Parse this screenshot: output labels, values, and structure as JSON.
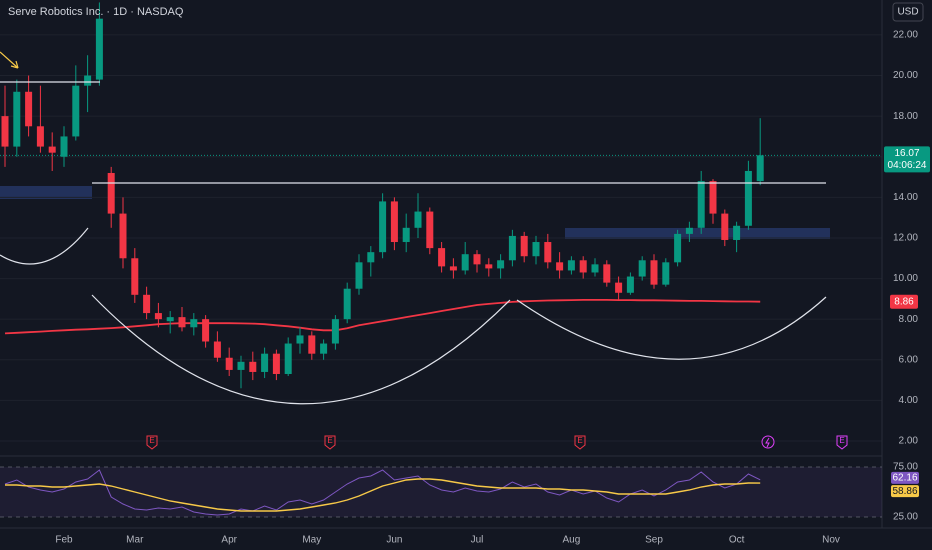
{
  "chart_data": [
    {
      "type": "candlestick",
      "title": "Serve Robotics Inc. · 1D · NASDAQ",
      "currency": "USD",
      "countdown": "04:06:24",
      "categories": [
        null,
        null,
        null,
        null,
        null,
        "Feb",
        null,
        null,
        null,
        null,
        null,
        "Mar",
        null,
        null,
        null,
        null,
        null,
        null,
        null,
        "Apr",
        null,
        null,
        null,
        null,
        null,
        null,
        "May",
        null,
        null,
        null,
        null,
        null,
        null,
        "Jun",
        null,
        null,
        null,
        null,
        null,
        null,
        "Jul",
        null,
        null,
        null,
        null,
        null,
        null,
        null,
        "Aug",
        null,
        null,
        null,
        null,
        null,
        null,
        "Sep",
        null,
        null,
        null,
        null,
        null,
        null,
        "Oct",
        null,
        null,
        null,
        null,
        null,
        null,
        null,
        "Nov"
      ],
      "open": [
        18,
        16.5,
        19.2,
        17.5,
        16.5,
        16,
        17,
        19.5,
        19.8,
        15.2,
        13.2,
        11,
        9.2,
        8.3,
        7.9,
        8.1,
        7.6,
        8,
        6.9,
        6.1,
        5.5,
        5.9,
        5.4,
        6.3,
        5.3,
        6.8,
        7.2,
        6.3,
        6.8,
        8,
        9.5,
        10.8,
        11.3,
        13.8,
        11.8,
        12.5,
        13.3,
        11.5,
        10.6,
        10.4,
        11.2,
        10.7,
        10.5,
        10.9,
        12.1,
        11.1,
        11.8,
        10.8,
        10.4,
        10.9,
        10.3,
        10.7,
        9.8,
        9.3,
        10.1,
        10.9,
        9.7,
        10.8,
        12.2,
        12.5,
        14.8,
        13.2,
        11.9,
        12.6,
        14.8,
        null,
        null,
        null,
        null,
        null,
        null
      ],
      "high": [
        19.5,
        19.8,
        20,
        19.5,
        17.2,
        17.5,
        20.5,
        21,
        23.6,
        15.5,
        14,
        11.5,
        9.6,
        8.8,
        8.4,
        8.6,
        8.3,
        8.2,
        7.4,
        6.6,
        6.2,
        6.4,
        6.6,
        6.5,
        7.1,
        7.6,
        7.4,
        7,
        8.2,
        9.8,
        11.2,
        11.6,
        14.2,
        14,
        13.2,
        14.2,
        13.5,
        11.8,
        11,
        11.8,
        11.4,
        11,
        11.2,
        12.4,
        12.3,
        12.1,
        12.2,
        11.3,
        11.1,
        11.1,
        11,
        10.9,
        10.1,
        10.3,
        11.1,
        11.2,
        11,
        12.4,
        12.8,
        15.3,
        14.9,
        13.4,
        12.8,
        15.8,
        17.9,
        null,
        null,
        null,
        null,
        null,
        null
      ],
      "low": [
        15.5,
        16,
        17,
        16.2,
        15.3,
        15.5,
        16.8,
        18.2,
        19.5,
        12.5,
        10.5,
        8.8,
        8,
        7.6,
        7.3,
        7.4,
        7.2,
        6.6,
        5.9,
        5.2,
        4.6,
        5,
        5.1,
        5,
        5.2,
        6.3,
        6,
        6,
        6.5,
        7.8,
        9.2,
        10.1,
        11,
        11.4,
        11.3,
        12,
        11.2,
        10.3,
        10,
        10.2,
        10.3,
        10.1,
        10,
        10.6,
        10.8,
        10.7,
        10.5,
        10,
        10.2,
        10,
        10.1,
        9.6,
        8.9,
        9.2,
        9.9,
        9.5,
        9.6,
        10.6,
        11.8,
        12.2,
        12.7,
        11.6,
        11.3,
        12.4,
        14.6,
        null,
        null,
        null,
        null,
        null,
        null
      ],
      "close": [
        16.5,
        19.2,
        17.5,
        16.5,
        16.2,
        17,
        19.5,
        20,
        22.8,
        13.2,
        11,
        9.2,
        8.3,
        8,
        8.1,
        7.6,
        8,
        6.9,
        6.1,
        5.5,
        5.9,
        5.4,
        6.3,
        5.3,
        6.8,
        7.2,
        6.3,
        6.8,
        8,
        9.5,
        10.8,
        11.3,
        13.8,
        11.8,
        12.5,
        13.3,
        11.5,
        10.6,
        10.4,
        11.2,
        10.7,
        10.5,
        10.9,
        12.1,
        11.1,
        11.8,
        10.8,
        10.4,
        10.9,
        10.3,
        10.7,
        9.8,
        9.3,
        10.1,
        10.9,
        9.7,
        10.8,
        12.2,
        12.5,
        14.8,
        13.2,
        11.9,
        12.6,
        15.3,
        16.07,
        null,
        null,
        null,
        null,
        null,
        null
      ],
      "up_color": "#089981",
      "down_color": "#f23645",
      "overlay": {
        "color": "#f23645",
        "values": [
          7.3,
          7.33,
          7.36,
          7.39,
          7.42,
          7.45,
          7.48,
          7.5,
          7.53,
          7.56,
          7.6,
          7.65,
          7.7,
          7.75,
          7.78,
          7.8,
          7.8,
          7.8,
          7.8,
          7.8,
          7.79,
          7.78,
          7.75,
          7.7,
          7.65,
          7.58,
          7.5,
          7.45,
          7.45,
          7.55,
          7.7,
          7.8,
          7.9,
          8.0,
          8.1,
          8.2,
          8.3,
          8.4,
          8.5,
          8.6,
          8.7,
          8.75,
          8.8,
          8.85,
          8.88,
          8.9,
          8.92,
          8.93,
          8.94,
          8.95,
          8.95,
          8.95,
          8.94,
          8.94,
          8.93,
          8.93,
          8.92,
          8.91,
          8.9,
          8.9,
          8.89,
          8.88,
          8.87,
          8.87,
          8.86,
          null,
          null,
          null,
          null,
          null,
          null
        ]
      },
      "events": [
        "E",
        "E",
        "E",
        "E"
      ],
      "ylim": [
        1.31,
        23.72
      ],
      "yticks": [
        {
          "value": 2,
          "label": "2.00"
        },
        {
          "value": 4,
          "label": "4.00"
        },
        {
          "value": 6,
          "label": "6.00"
        },
        {
          "value": 8,
          "label": "8.00"
        },
        {
          "value": 10,
          "label": "10.00"
        },
        {
          "value": 12,
          "label": "12.00"
        },
        {
          "value": 14,
          "label": "14.00"
        },
        {
          "value": 16,
          "label": "16.00"
        },
        {
          "value": 18,
          "label": "18.00"
        },
        {
          "value": 20,
          "label": "20.00"
        },
        {
          "value": 22,
          "label": "22.00"
        }
      ]
    },
    {
      "type": "line",
      "series": [
        {
          "color": "#7e57c2",
          "values": [
            58,
            62,
            55,
            52,
            50,
            53,
            60,
            63,
            72,
            45,
            38,
            33,
            32,
            34,
            33,
            35,
            30,
            28,
            27,
            28,
            33,
            31,
            36,
            32,
            40,
            42,
            38,
            42,
            50,
            58,
            64,
            66,
            72,
            62,
            64,
            66,
            57,
            52,
            50,
            54,
            51,
            50,
            53,
            60,
            55,
            58,
            50,
            47,
            52,
            48,
            51,
            44,
            40,
            48,
            52,
            46,
            52,
            60,
            62,
            70,
            60,
            54,
            58,
            68,
            62.16,
            null,
            null,
            null,
            null,
            null,
            null
          ]
        },
        {
          "color": "#f7c948",
          "values": [
            57,
            57,
            56,
            56,
            55,
            55,
            56,
            57,
            58,
            56,
            53,
            50,
            47,
            44,
            41,
            39,
            37,
            35,
            33,
            32,
            31,
            31,
            31,
            31,
            32,
            33,
            35,
            37,
            39,
            42,
            46,
            51,
            56,
            59,
            62,
            63,
            63,
            62,
            60,
            58,
            56,
            55,
            54,
            54,
            54,
            54,
            53,
            53,
            52,
            52,
            51,
            50,
            48,
            48,
            48,
            48,
            48,
            50,
            52,
            55,
            57,
            58,
            58,
            59,
            58.86,
            null,
            null,
            null,
            null,
            null,
            null
          ]
        }
      ],
      "ylim": [
        17,
        84
      ],
      "yticks": [
        {
          "value": 75,
          "label": "75.00"
        },
        {
          "value": 25,
          "label": "25.00"
        }
      ]
    }
  ]
}
